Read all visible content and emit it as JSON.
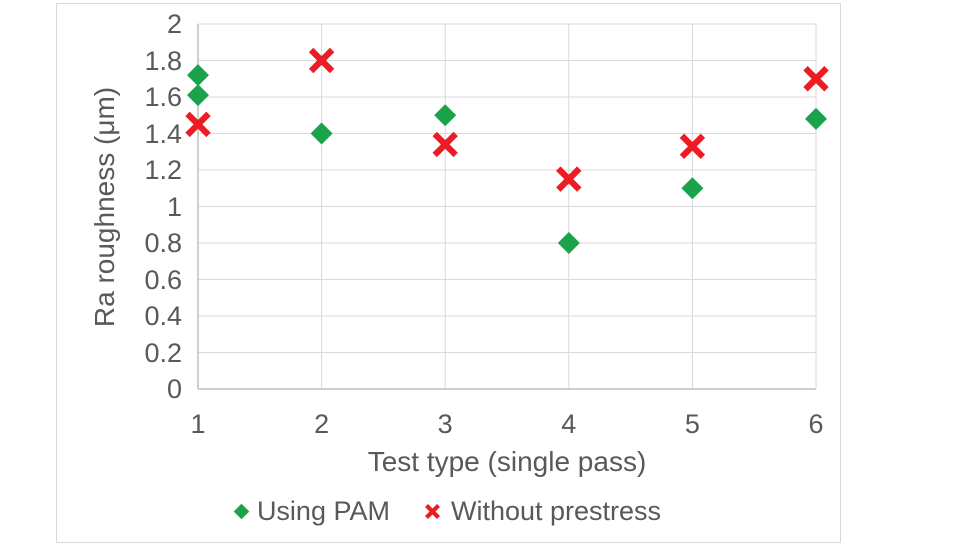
{
  "chart_data": {
    "type": "scatter",
    "title": "",
    "xlabel": "Test type (single pass)",
    "ylabel": "Ra roughness (μm)",
    "xlim": [
      1,
      6
    ],
    "ylim": [
      0,
      2
    ],
    "x_ticks": [
      1,
      2,
      3,
      4,
      5,
      6
    ],
    "x_tick_labels": [
      "1",
      "2",
      "3",
      "4",
      "5",
      "6"
    ],
    "y_ticks": [
      0,
      0.2,
      0.4,
      0.6,
      0.8,
      1,
      1.2,
      1.4,
      1.6,
      1.8,
      2
    ],
    "y_tick_labels": [
      "0",
      "0.2",
      "0.4",
      "0.6",
      "0.8",
      "1",
      "1.2",
      "1.4",
      "1.6",
      "1.8",
      "2"
    ],
    "grid": true,
    "legend_position": "bottom-center",
    "series": [
      {
        "name": "Using PAM",
        "marker": "diamond",
        "color": "#1aa34a",
        "points": [
          {
            "x": 1,
            "y": 1.72
          },
          {
            "x": 1,
            "y": 1.61
          },
          {
            "x": 2,
            "y": 1.4
          },
          {
            "x": 3,
            "y": 1.5
          },
          {
            "x": 4,
            "y": 0.8
          },
          {
            "x": 5,
            "y": 1.1
          },
          {
            "x": 6,
            "y": 1.48
          }
        ]
      },
      {
        "name": "Without prestress",
        "marker": "x",
        "color": "#ed1c24",
        "points": [
          {
            "x": 1,
            "y": 1.45
          },
          {
            "x": 2,
            "y": 1.8
          },
          {
            "x": 3,
            "y": 1.34
          },
          {
            "x": 4,
            "y": 1.15
          },
          {
            "x": 5,
            "y": 1.33
          },
          {
            "x": 6,
            "y": 1.7
          }
        ]
      }
    ]
  },
  "colors": {
    "text": "#595959",
    "gridline": "#d9d9d9",
    "axis_line": "#bfbfbf",
    "chart_border": "#d9d9d9",
    "background": "#ffffff"
  }
}
